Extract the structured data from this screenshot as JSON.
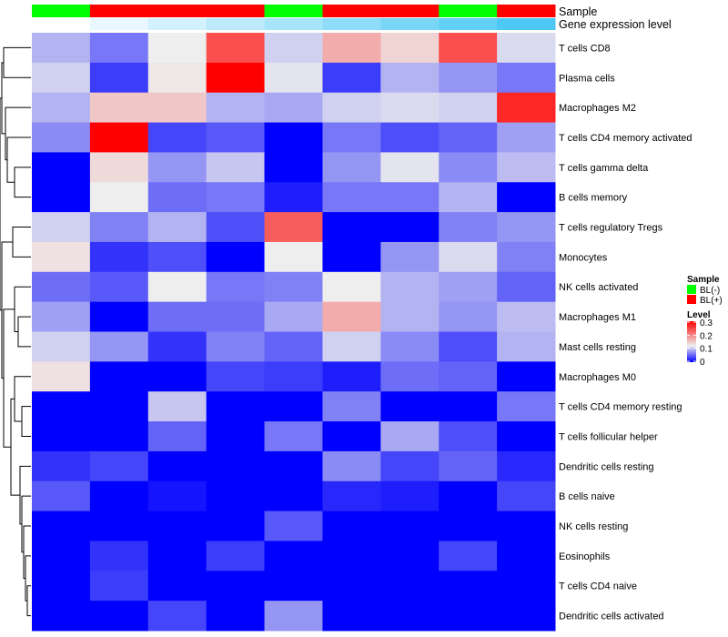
{
  "chart_data": {
    "type": "heatmap",
    "title": "",
    "rows": [
      "T cells CD8",
      "Plasma cells",
      "Macrophages M2",
      "T cells CD4 memory activated",
      "T cells gamma delta",
      "B cells memory",
      "T cells regulatory  Tregs",
      "Monocytes",
      "NK cells activated",
      "Macrophages M1",
      "Mast cells resting",
      "Macrophages M0",
      "T cells CD4 memory resting",
      "T cells follicular helper",
      "Dendritic cells resting",
      "B cells naive",
      "NK cells resting",
      "Eosinophils",
      "T cells CD4 naive",
      "Dendritic cells activated"
    ],
    "columns_count": 9,
    "values": [
      [
        0.09,
        0.06,
        0.12,
        0.24,
        0.105,
        0.17,
        0.14,
        0.24,
        0.11
      ],
      [
        0.105,
        0.03,
        0.125,
        0.3,
        0.115,
        0.03,
        0.09,
        0.075,
        0.06
      ],
      [
        0.09,
        0.15,
        0.15,
        0.09,
        0.085,
        0.105,
        0.11,
        0.105,
        0.27
      ],
      [
        0.07,
        0.3,
        0.035,
        0.045,
        0,
        0.06,
        0.04,
        0.05,
        0.08
      ],
      [
        0,
        0.135,
        0.075,
        0.1,
        0,
        0.075,
        0.115,
        0.07,
        0.095
      ],
      [
        0,
        0.12,
        0.055,
        0.06,
        0.015,
        0.06,
        0.06,
        0.09,
        0
      ],
      [
        0.105,
        0.065,
        0.09,
        0.04,
        0.23,
        0,
        0,
        0.065,
        0.075
      ],
      [
        0.13,
        0.025,
        0.04,
        0,
        0.12,
        0,
        0.075,
        0.11,
        0.065
      ],
      [
        0.055,
        0.045,
        0.12,
        0.06,
        0.065,
        0.12,
        0.09,
        0.08,
        0.05
      ],
      [
        0.08,
        0,
        0.055,
        0.055,
        0.085,
        0.17,
        0.09,
        0.075,
        0.095
      ],
      [
        0.105,
        0.075,
        0.025,
        0.065,
        0.05,
        0.105,
        0.07,
        0.04,
        0.09
      ],
      [
        0.13,
        0,
        0,
        0.035,
        0.03,
        0.015,
        0.055,
        0.05,
        0
      ],
      [
        0,
        0,
        0.1,
        0,
        0,
        0.065,
        0,
        0,
        0.06
      ],
      [
        0,
        0,
        0.05,
        0,
        0.06,
        0,
        0.085,
        0.04,
        0
      ],
      [
        0.025,
        0.035,
        0,
        0,
        0,
        0.07,
        0.035,
        0.05,
        0.02
      ],
      [
        0.045,
        0,
        0.01,
        0,
        0,
        0.02,
        0.015,
        0,
        0.035
      ],
      [
        0,
        0,
        0,
        0,
        0.045,
        0,
        0,
        0,
        0
      ],
      [
        0,
        0.025,
        0,
        0.03,
        0,
        0,
        0,
        0.035,
        0
      ],
      [
        0,
        0.03,
        0,
        0,
        0,
        0,
        0,
        0,
        0
      ],
      [
        0,
        0,
        0.035,
        0,
        0.075,
        0,
        0,
        0,
        0
      ]
    ],
    "color_range": [
      0,
      0.3
    ],
    "annotations": {
      "sample_label": "Sample",
      "sample": [
        "BL(-)",
        "BL(+)",
        "BL(+)",
        "BL(+)",
        "BL(-)",
        "BL(+)",
        "BL(+)",
        "BL(-)",
        "BL(+)"
      ],
      "gene_label": "Gene expression level",
      "gene_expression_rank": [
        0,
        0.125,
        0.25,
        0.375,
        0.5,
        0.625,
        0.75,
        0.875,
        1
      ]
    },
    "legend": {
      "placement": "right",
      "sample_title": "Sample",
      "sample_entries": [
        {
          "label": "BL(-)",
          "color": "#00FF00"
        },
        {
          "label": "BL(+)",
          "color": "#FF0000"
        }
      ],
      "level_title": "Level",
      "level_ticks": [
        "0.3",
        "0.2",
        "0.1",
        "0"
      ],
      "level_tick_values": [
        0.3,
        0.2,
        0.1,
        0
      ]
    },
    "colors": {
      "low": "#0000FF",
      "mid": "#EEEEEE",
      "high": "#FF0000",
      "gene_low": "#FFFFFF",
      "gene_high": "#4CC8F4"
    }
  }
}
